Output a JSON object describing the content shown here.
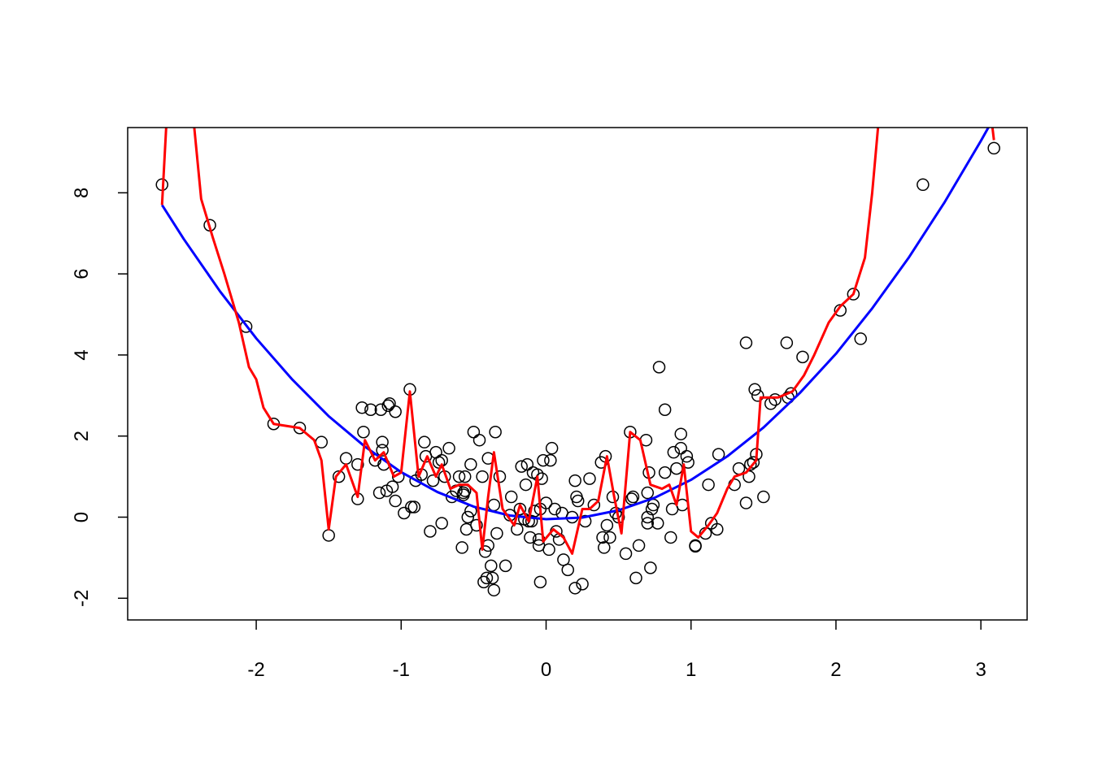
{
  "chart_data": {
    "type": "scatter",
    "xlim": [
      -2.887,
      3.319
    ],
    "ylim": [
      -2.535,
      9.609
    ],
    "xticks": [
      -2,
      -1,
      0,
      1,
      2,
      3
    ],
    "yticks": [
      -2,
      0,
      2,
      4,
      6,
      8
    ],
    "points": {
      "color": "#000000",
      "x": [
        -2.65,
        -2.32,
        -2.07,
        -1.88,
        -1.7,
        -1.55,
        -1.5,
        -1.43,
        -1.38,
        -1.3,
        -1.3,
        -1.27,
        -1.26,
        -1.21,
        -1.18,
        -1.15,
        -1.14,
        -1.13,
        -1.13,
        -1.12,
        -1.1,
        -1.09,
        -1.08,
        -1.06,
        -1.04,
        -1.04,
        -1.02,
        -0.98,
        -0.94,
        -0.93,
        -0.91,
        -0.9,
        -0.86,
        -0.84,
        -0.83,
        -0.8,
        -0.78,
        -0.76,
        -0.74,
        -0.72,
        -0.72,
        -0.7,
        -0.67,
        -0.65,
        -0.62,
        -0.6,
        -0.58,
        -0.57,
        -0.57,
        -0.56,
        -0.56,
        -0.55,
        -0.54,
        -0.52,
        -0.52,
        -0.5,
        -0.48,
        -0.46,
        -0.44,
        -0.43,
        -0.42,
        -0.41,
        -0.4,
        -0.4,
        -0.38,
        -0.37,
        -0.36,
        -0.36,
        -0.35,
        -0.34,
        -0.32,
        -0.28,
        -0.25,
        -0.24,
        -0.2,
        -0.18,
        -0.17,
        -0.15,
        -0.14,
        -0.13,
        -0.12,
        -0.11,
        -0.1,
        -0.09,
        -0.08,
        -0.06,
        -0.05,
        -0.05,
        -0.04,
        -0.04,
        -0.03,
        -0.02,
        0,
        0.02,
        0.03,
        0.04,
        0.06,
        0.07,
        0.09,
        0.11,
        0.12,
        0.15,
        0.18,
        0.2,
        0.2,
        0.21,
        0.22,
        0.25,
        0.27,
        0.3,
        0.33,
        0.38,
        0.39,
        0.4,
        0.41,
        0.42,
        0.44,
        0.46,
        0.48,
        0.5,
        0.55,
        0.58,
        0.59,
        0.6,
        0.62,
        0.64,
        0.69,
        0.7,
        0.7,
        0.7,
        0.71,
        0.72,
        0.73,
        0.74,
        0.77,
        0.78,
        0.82,
        0.82,
        0.86,
        0.87,
        0.88,
        0.9,
        0.93,
        0.93,
        0.94,
        0.97,
        0.98,
        1.03,
        1.03,
        1.1,
        1.12,
        1.14,
        1.18,
        1.19,
        1.3,
        1.33,
        1.38,
        1.38,
        1.4,
        1.41,
        1.43,
        1.44,
        1.45,
        1.46,
        1.5,
        1.55,
        1.58,
        1.66,
        1.67,
        1.69,
        1.77,
        2.03,
        2.12,
        2.17,
        2.6,
        3.09
      ],
      "y": [
        8.2,
        7.2,
        4.7,
        2.3,
        2.2,
        1.85,
        -0.45,
        1.0,
        1.45,
        0.45,
        1.3,
        2.7,
        2.1,
        2.65,
        1.4,
        0.6,
        2.65,
        1.85,
        1.65,
        1.3,
        0.65,
        2.75,
        2.8,
        0.75,
        2.6,
        0.4,
        1.0,
        0.1,
        3.15,
        0.25,
        0.25,
        0.9,
        1.05,
        1.85,
        1.5,
        -0.35,
        0.9,
        1.6,
        1.35,
        1.4,
        -0.15,
        1.0,
        1.7,
        0.5,
        0.65,
        1.0,
        -0.75,
        0.6,
        0.55,
        1.0,
        0.65,
        -0.3,
        0.0,
        1.3,
        0.15,
        2.1,
        -0.2,
        1.9,
        1.0,
        -1.6,
        -0.85,
        -1.5,
        -0.7,
        1.45,
        -1.2,
        -1.5,
        -1.8,
        0.3,
        2.1,
        -0.4,
        1.0,
        -1.2,
        0.05,
        0.5,
        -0.3,
        0.2,
        1.25,
        -0.05,
        0.8,
        1.3,
        -0.1,
        -0.5,
        -0.1,
        1.1,
        0.15,
        1.05,
        -0.7,
        -0.55,
        0.2,
        -1.6,
        0.95,
        1.4,
        0.35,
        -0.8,
        1.4,
        1.7,
        0.2,
        -0.35,
        -0.55,
        0.1,
        -1.05,
        -1.3,
        0.0,
        -1.75,
        0.9,
        0.5,
        0.4,
        -1.65,
        -0.1,
        0.95,
        0.3,
        1.35,
        -0.5,
        -0.75,
        1.5,
        -0.2,
        -0.5,
        0.5,
        0.1,
        0.0,
        -0.9,
        2.1,
        0.45,
        0.5,
        -1.5,
        -0.7,
        1.9,
        0.6,
        -0.15,
        0.0,
        1.1,
        -1.25,
        0.2,
        0.3,
        -0.15,
        3.7,
        2.65,
        1.1,
        -0.5,
        0.2,
        1.6,
        1.2,
        1.7,
        2.05,
        0.3,
        1.5,
        1.35,
        -0.72,
        -0.7,
        -0.4,
        0.8,
        -0.15,
        -0.3,
        1.55,
        0.8,
        1.2,
        4.3,
        0.35,
        1.0,
        1.3,
        1.35,
        3.15,
        1.55,
        3.0,
        0.5,
        2.8,
        2.9,
        4.3,
        2.95,
        3.05,
        3.95,
        5.1,
        5.5,
        4.4,
        8.2,
        9.1
      ]
    },
    "lines": [
      {
        "color": "#0000ff",
        "x": [
          -2.65,
          -2.5,
          -2.25,
          -2,
          -1.75,
          -1.5,
          -1.25,
          -1,
          -0.75,
          -0.5,
          -0.25,
          0,
          0.25,
          0.5,
          0.75,
          1,
          1.25,
          1.5,
          1.75,
          2,
          2.25,
          2.5,
          2.75,
          3,
          3.1
        ],
        "y": [
          7.7,
          6.86,
          5.57,
          4.41,
          3.39,
          2.49,
          1.74,
          1.11,
          0.62,
          0.26,
          0.04,
          -0.05,
          -0.01,
          0.17,
          0.48,
          0.92,
          1.5,
          2.21,
          3.06,
          4.03,
          5.15,
          6.39,
          7.77,
          9.28,
          9.92
        ]
      },
      {
        "color": "#ff0000",
        "x": [
          -2.65,
          -2.62,
          null,
          -2.43,
          -2.38,
          -2.3,
          -2.22,
          -2.12,
          -2.05,
          -2.0,
          -1.95,
          -1.88,
          -1.7,
          -1.6,
          -1.55,
          -1.5,
          -1.45,
          -1.38,
          -1.3,
          -1.25,
          -1.18,
          -1.12,
          -1.05,
          -1.0,
          -0.94,
          -0.88,
          -0.82,
          -0.76,
          -0.72,
          -0.66,
          -0.6,
          -0.54,
          -0.48,
          -0.44,
          -0.4,
          -0.36,
          -0.3,
          -0.22,
          -0.18,
          -0.12,
          -0.06,
          -0.02,
          0.05,
          0.12,
          0.18,
          0.25,
          0.3,
          0.36,
          0.42,
          0.47,
          0.52,
          0.58,
          0.65,
          0.72,
          0.8,
          0.85,
          0.9,
          0.95,
          1.0,
          1.05,
          1.12,
          1.18,
          1.25,
          1.3,
          1.38,
          1.45,
          1.48,
          1.6,
          1.7,
          1.78,
          1.85,
          1.95,
          2.03,
          2.12,
          2.2,
          2.25,
          2.3,
          null,
          3.07,
          3.09
        ],
        "y": [
          7.7,
          9.7,
          null,
          9.7,
          7.85,
          6.9,
          6.0,
          4.8,
          3.7,
          3.4,
          2.7,
          2.3,
          2.2,
          1.9,
          1.4,
          -0.3,
          1.0,
          1.3,
          0.5,
          1.9,
          1.4,
          1.6,
          1.0,
          1.1,
          3.1,
          1.0,
          1.5,
          1.0,
          1.3,
          0.7,
          0.8,
          0.8,
          0.6,
          -0.8,
          0.5,
          1.6,
          0.2,
          -0.2,
          0.3,
          -0.1,
          1.0,
          -0.6,
          -0.3,
          -0.5,
          -0.9,
          0.2,
          0.2,
          0.4,
          1.5,
          0.5,
          -0.4,
          2.1,
          1.9,
          0.8,
          0.7,
          0.8,
          0.3,
          1.3,
          -0.35,
          -0.5,
          -0.2,
          0.1,
          0.7,
          1.0,
          1.1,
          1.4,
          2.95,
          2.95,
          3.1,
          3.5,
          4.0,
          4.8,
          5.2,
          5.5,
          6.4,
          8.0,
          10.0,
          null,
          9.9,
          9.3
        ]
      }
    ]
  }
}
